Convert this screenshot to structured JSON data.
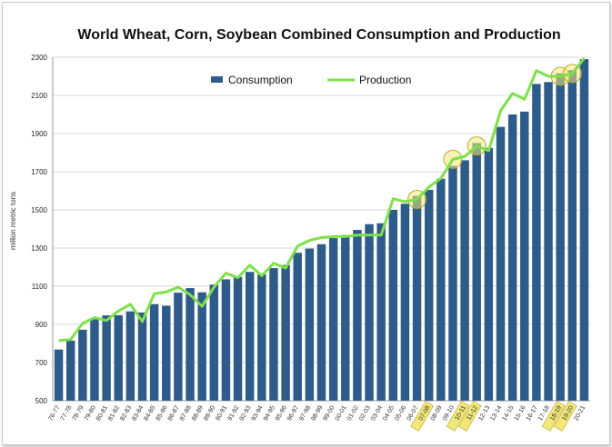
{
  "chart_data": {
    "type": "bar",
    "title": "World Wheat, Corn, Soybean Combined Consumption and Production",
    "ylabel": "million metric tons",
    "xlabel": "",
    "ylim": [
      500,
      2300
    ],
    "yticks": [
      500,
      700,
      900,
      1100,
      1300,
      1500,
      1700,
      1900,
      2100,
      2300
    ],
    "grid": true,
    "legend_position": "top-center",
    "categories": [
      "76-77",
      "77-78",
      "78-79",
      "79-80",
      "80-81",
      "81-82",
      "82-83",
      "83-84",
      "84-85",
      "85-86",
      "86-87",
      "87-88",
      "88-89",
      "89-90",
      "90-91",
      "91-92",
      "92-93",
      "93-94",
      "94-95",
      "95-96",
      "96-97",
      "97-98",
      "98-99",
      "99-00",
      "00-01",
      "01-02",
      "02-03",
      "03-04",
      "04-05",
      "05-06",
      "06-07",
      "07-08",
      "08-09",
      "09-10",
      "10-11",
      "11-12",
      "12-13",
      "13-14",
      "14-15",
      "15-16",
      "16-17",
      "17-18",
      "18-19",
      "19-20",
      "20-21"
    ],
    "series": [
      {
        "name": "Consumption",
        "type": "bar",
        "color": "#2e5c8a",
        "values": [
          768,
          815,
          872,
          927,
          947,
          948,
          968,
          962,
          1006,
          998,
          1066,
          1090,
          1068,
          1108,
          1136,
          1148,
          1175,
          1162,
          1195,
          1211,
          1275,
          1297,
          1320,
          1352,
          1368,
          1395,
          1425,
          1430,
          1500,
          1532,
          1573,
          1605,
          1663,
          1730,
          1760,
          1850,
          1825,
          1935,
          2000,
          2015,
          2160,
          2170,
          2215,
          2232,
          2290
        ]
      },
      {
        "name": "Production",
        "type": "line",
        "color": "#7ee04a",
        "values": [
          815,
          820,
          905,
          935,
          920,
          970,
          1005,
          915,
          1060,
          1070,
          1095,
          1055,
          995,
          1095,
          1168,
          1145,
          1210,
          1155,
          1220,
          1195,
          1310,
          1340,
          1355,
          1360,
          1360,
          1368,
          1368,
          1368,
          1558,
          1543,
          1555,
          1620,
          1665,
          1765,
          1780,
          1835,
          1810,
          2020,
          2110,
          2080,
          2230,
          2200,
          2200,
          2215,
          2295
        ]
      }
    ],
    "highlight_circles": [
      "06-07",
      "09-10",
      "11-12",
      "18-19",
      "19-20"
    ],
    "highlight_labels": [
      "07-08",
      "10-11",
      "11-12",
      "18-19",
      "19-20"
    ],
    "highlight_color": "#f2e878"
  }
}
